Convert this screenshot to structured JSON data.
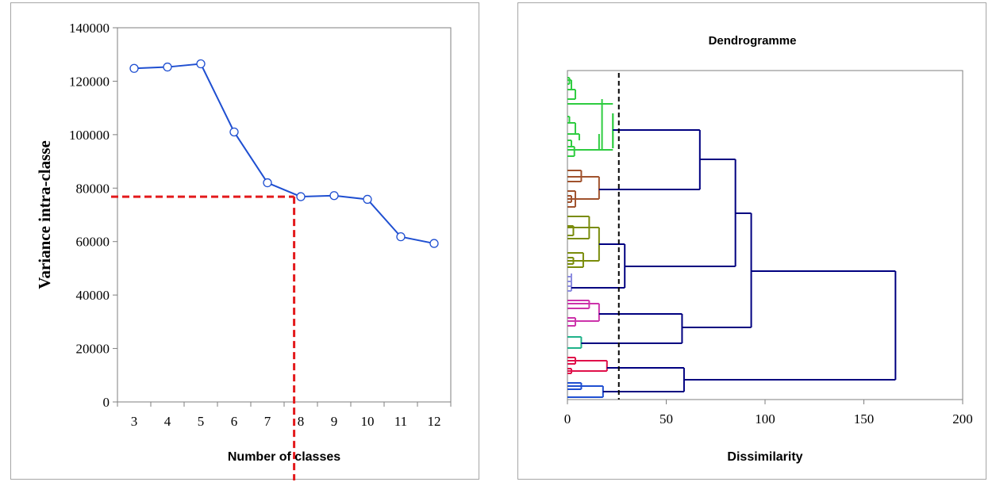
{
  "chart_data": [
    {
      "type": "line",
      "title": "",
      "xlabel": "Number of classes",
      "ylabel": "Variance intra-classe",
      "categories": [
        "3",
        "4",
        "5",
        "6",
        "7",
        "8",
        "9",
        "10",
        "11",
        "12"
      ],
      "series": [
        {
          "values": [
            124800,
            125300,
            126500,
            101000,
            82000,
            76800,
            77200,
            75800,
            61800,
            59300
          ],
          "color": "#1f4fd1"
        }
      ],
      "ylim": [
        0,
        140000
      ],
      "yticks": [
        "0",
        "20000",
        "40000",
        "60000",
        "80000",
        "100000",
        "120000",
        "140000"
      ],
      "grid": false,
      "markers": "open-circle",
      "reference_lines": {
        "x": 7.8,
        "y": 76800,
        "color": "#e31a1c",
        "style": "dashed"
      }
    },
    {
      "type": "dendrogram",
      "title": "Dendrogramme",
      "xlabel": "Dissimilarity",
      "ylabel": "",
      "xlim": [
        0,
        200
      ],
      "xticks": [
        "0",
        "50",
        "100",
        "150",
        "200"
      ],
      "truncation_line": {
        "x": 26,
        "style": "dashed",
        "color": "#000000"
      },
      "clusters": [
        {
          "id": "c1",
          "color": "#2ecc40",
          "height": 23
        },
        {
          "id": "c2",
          "color": "#a0522d",
          "height": 16
        },
        {
          "id": "c3",
          "color": "#7a8c0a",
          "height": 16
        },
        {
          "id": "c4",
          "color": "#8b8be0",
          "height": 2
        },
        {
          "id": "c5",
          "color": "#cc33aa",
          "height": 16
        },
        {
          "id": "c6",
          "color": "#20b28a",
          "height": 7
        },
        {
          "id": "c7",
          "color": "#e0104a",
          "height": 20
        },
        {
          "id": "c8",
          "color": "#1f4fd1",
          "height": 18
        }
      ],
      "merges": [
        {
          "a": "c1",
          "b": "c2",
          "height": 67
        },
        {
          "a": "c3",
          "b": "c4",
          "height": 29
        },
        {
          "a": "c1+c2",
          "b": "c3+c4",
          "height": 85
        },
        {
          "a": "c5",
          "b": "c6",
          "height": 58
        },
        {
          "a": "c1..c4",
          "b": "c5+c6",
          "height": 93
        },
        {
          "a": "c7",
          "b": "c8",
          "height": 59
        },
        {
          "a": "c1..c6",
          "b": "c7+c8",
          "height": 166
        }
      ],
      "merge_color": "#000080"
    }
  ]
}
